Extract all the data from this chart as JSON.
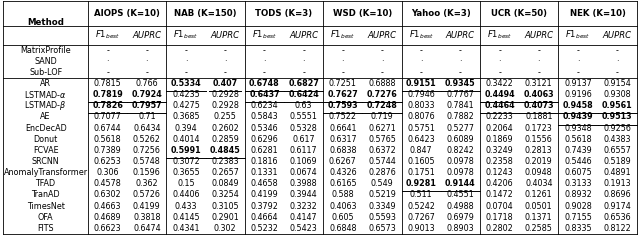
{
  "groups": [
    "AIOPS (K=10)",
    "NAB (K=150)",
    "TODS (K=3)",
    "WSD (K=10)",
    "Yahoo (K=3)",
    "UCR (K=50)",
    "NEK (K=10)"
  ],
  "methods": [
    "MatrixProfile",
    "SAND",
    "Sub-LOF",
    "AR",
    "LSTMAD-α",
    "LSTMAD-β",
    "AE",
    "EncDecAD",
    "Donut",
    "FCVAE",
    "SRCNN",
    "AnomalyTransformer",
    "TFAD",
    "TranAD",
    "TimesNet",
    "OFA",
    "FITS"
  ],
  "data": [
    [
      "-",
      "-",
      "-",
      "-",
      "-",
      "-",
      "-",
      "-",
      "-",
      "-",
      "-",
      "-",
      "-",
      "-"
    ],
    [
      "·",
      "·",
      "·",
      "·",
      "·",
      "·",
      "·",
      "·",
      "·",
      "·",
      "·",
      "·",
      "·",
      "·"
    ],
    [
      "-",
      "-",
      "-",
      "-",
      "-",
      "-",
      "-",
      "-",
      "-",
      "-",
      "-",
      "-",
      "-",
      "-"
    ],
    [
      "0.7815",
      "0.766",
      "0.5334",
      "0.407",
      "0.6748",
      "0.6827",
      "0.7251",
      "0.6888",
      "0.9151",
      "0.9345",
      "0.3422",
      "0.3121",
      "0.9137",
      "0.9154"
    ],
    [
      "0.7819",
      "0.7924",
      "0.4235",
      "0.2928",
      "0.6437",
      "0.6424",
      "0.7627",
      "0.7276",
      "0.7946",
      "0.7767",
      "0.4494",
      "0.4063",
      "0.9196",
      "0.9308"
    ],
    [
      "0.7826",
      "0.7957",
      "0.4275",
      "0.2928",
      "0.6234",
      "0.63",
      "0.7593",
      "0.7248",
      "0.8033",
      "0.7841",
      "0.4464",
      "0.4073",
      "0.9458",
      "0.9561"
    ],
    [
      "0.7077",
      "0.71",
      "0.3685",
      "0.255",
      "0.5843",
      "0.5551",
      "0.7522",
      "0.719",
      "0.8076",
      "0.7882",
      "0.2233",
      "0.1881",
      "0.9439",
      "0.9513"
    ],
    [
      "0.6744",
      "0.6434",
      "0.394",
      "0.2602",
      "0.5346",
      "0.5328",
      "0.6641",
      "0.6271",
      "0.5751",
      "0.5277",
      "0.2064",
      "0.1723",
      "0.9348",
      "0.9256"
    ],
    [
      "0.5618",
      "0.5262",
      "0.4014",
      "0.2859",
      "0.6296",
      "0.617",
      "0.6317",
      "0.5765",
      "0.6423",
      "0.6089",
      "0.1869",
      "0.1556",
      "0.5618",
      "0.4383"
    ],
    [
      "0.7389",
      "0.7256",
      "0.5991",
      "0.4845",
      "0.6281",
      "0.6117",
      "0.6838",
      "0.6372",
      "0.847",
      "0.8242",
      "0.3249",
      "0.2813",
      "0.7439",
      "0.6557"
    ],
    [
      "0.6253",
      "0.5748",
      "0.3072",
      "0.2383",
      "0.1816",
      "0.1069",
      "0.6267",
      "0.5744",
      "0.1605",
      "0.0978",
      "0.2358",
      "0.2019",
      "0.5446",
      "0.5189"
    ],
    [
      "0.306",
      "0.1596",
      "0.3655",
      "0.2657",
      "0.1331",
      "0.0674",
      "0.4326",
      "0.2876",
      "0.1751",
      "0.0978",
      "0.1243",
      "0.0948",
      "0.6075",
      "0.4891"
    ],
    [
      "0.4578",
      "0.362",
      "0.15",
      "0.0849",
      "0.4658",
      "0.3988",
      "0.6165",
      "0.549",
      "0.9281",
      "0.9144",
      "0.4206",
      "0.4034",
      "0.3133",
      "0.1913"
    ],
    [
      "0.6302",
      "0.5726",
      "0.4406",
      "0.3254",
      "0.4199",
      "0.3944",
      "0.588",
      "0.5219",
      "0.511",
      "0.4551",
      "0.1472",
      "0.1261",
      "0.8932",
      "0.8696"
    ],
    [
      "0.4663",
      "0.4199",
      "0.433",
      "0.3105",
      "0.3792",
      "0.3232",
      "0.4063",
      "0.3349",
      "0.5242",
      "0.4988",
      "0.0704",
      "0.0501",
      "0.9028",
      "0.9174"
    ],
    [
      "0.4689",
      "0.3818",
      "0.4145",
      "0.2901",
      "0.4664",
      "0.4147",
      "0.605",
      "0.5593",
      "0.7267",
      "0.6979",
      "0.1718",
      "0.1371",
      "0.7155",
      "0.6536"
    ],
    [
      "0.6623",
      "0.6474",
      "0.4341",
      "0.302",
      "0.5232",
      "0.5423",
      "0.6848",
      "0.6573",
      "0.9013",
      "0.8903",
      "0.2802",
      "0.2585",
      "0.8335",
      "0.8122"
    ]
  ],
  "bold_underline": [
    [],
    [],
    [],
    [
      2,
      3,
      4,
      5,
      8,
      9
    ],
    [
      0,
      1,
      4,
      5,
      6,
      7,
      10,
      11
    ],
    [
      0,
      1,
      6,
      7,
      10,
      11,
      12,
      13
    ],
    [
      12,
      13
    ],
    [],
    [],
    [
      2,
      3
    ],
    [],
    [],
    [
      8,
      9
    ],
    [],
    [],
    [],
    []
  ],
  "fontsize": 5.8,
  "header_fontsize": 6.2
}
